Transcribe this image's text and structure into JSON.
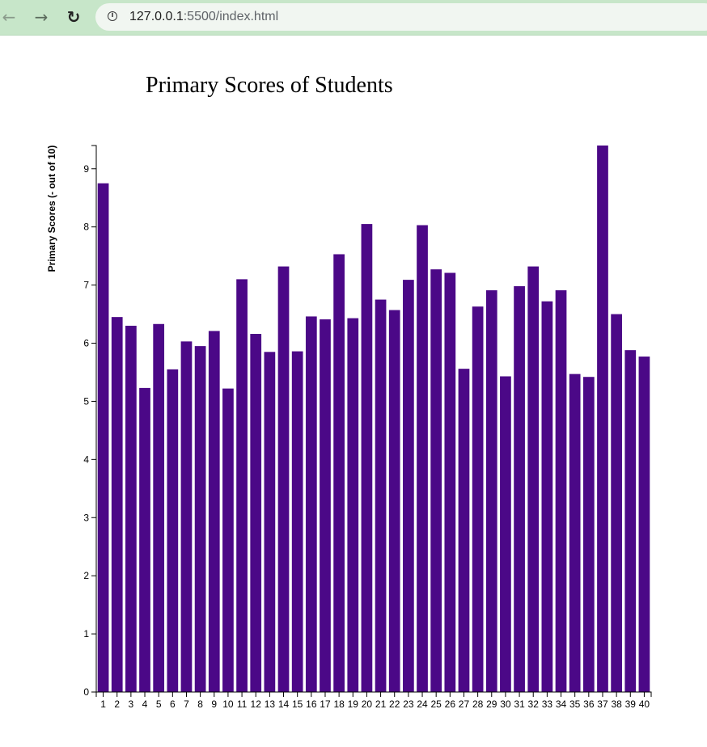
{
  "browser": {
    "back_icon": "arrow-left-icon",
    "forward_icon": "arrow-right-icon",
    "reload_icon": "reload-icon",
    "info_icon": "info-icon",
    "url_host": "127.0.0.1",
    "url_path": ":5500/index.html"
  },
  "chart_data": {
    "type": "bar",
    "title": "Primary Scores of Students",
    "xlabel": "",
    "ylabel": "Primary Scores (- out of 10)",
    "ylim": [
      0,
      9.4
    ],
    "yticks": [
      0,
      1,
      2,
      3,
      4,
      5,
      6,
      7,
      8,
      9
    ],
    "categories": [
      "1",
      "2",
      "3",
      "4",
      "5",
      "6",
      "7",
      "8",
      "9",
      "10",
      "11",
      "12",
      "13",
      "14",
      "15",
      "16",
      "17",
      "18",
      "19",
      "20",
      "21",
      "22",
      "23",
      "24",
      "25",
      "26",
      "27",
      "28",
      "29",
      "30",
      "31",
      "32",
      "33",
      "34",
      "35",
      "36",
      "37",
      "38",
      "39",
      "40"
    ],
    "values": [
      8.75,
      6.45,
      6.3,
      5.23,
      6.33,
      5.55,
      6.03,
      5.95,
      6.21,
      5.22,
      7.1,
      6.16,
      5.85,
      7.32,
      5.86,
      6.46,
      6.41,
      7.53,
      6.43,
      8.05,
      6.75,
      6.57,
      7.09,
      8.03,
      7.27,
      7.21,
      5.56,
      6.63,
      6.91,
      5.43,
      6.98,
      7.32,
      6.72,
      6.91,
      5.47,
      5.42,
      9.4,
      6.5,
      5.88,
      5.77
    ],
    "bar_color": "#4b0887",
    "grid": false,
    "legend": "none"
  }
}
